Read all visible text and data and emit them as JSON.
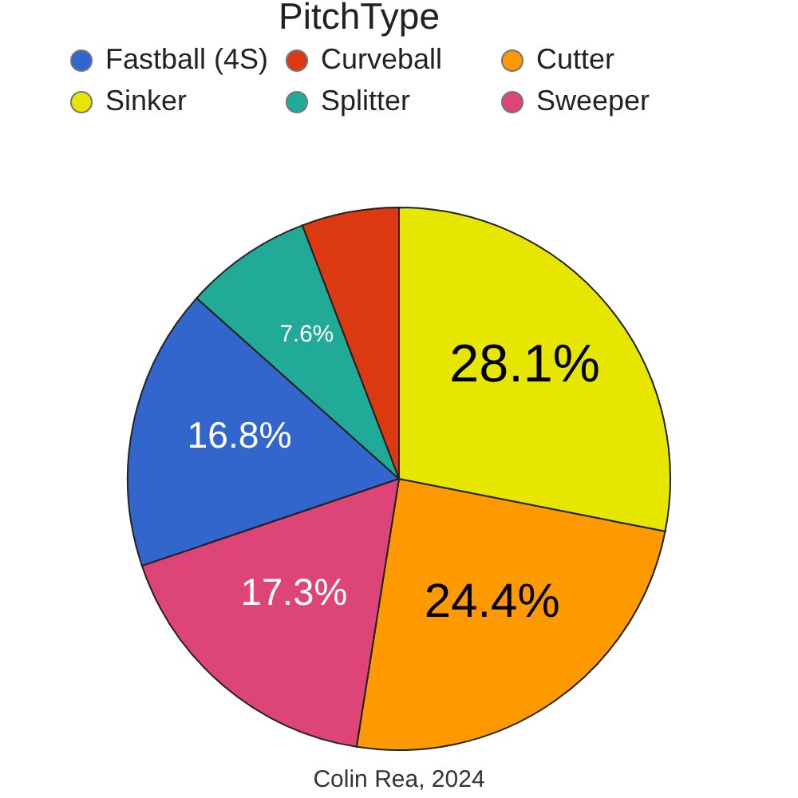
{
  "chart_data": {
    "type": "pie",
    "legend_title": "PitchType",
    "categories": [
      "Fastball (4S)",
      "Curveball",
      "Cutter",
      "Sinker",
      "Splitter",
      "Sweeper"
    ],
    "values": [
      16.8,
      5.8,
      24.4,
      28.1,
      7.6,
      17.3
    ],
    "colors": [
      "#3366cc",
      "#dc3912",
      "#ff9900",
      "#e6e600",
      "#22aa99",
      "#dd4477"
    ],
    "value_labels": [
      "16.8%",
      null,
      "24.4%",
      "28.1%",
      "7.6%",
      "17.3%"
    ],
    "legend": "top",
    "annotations": [
      "Colin Rea, 2024"
    ]
  }
}
